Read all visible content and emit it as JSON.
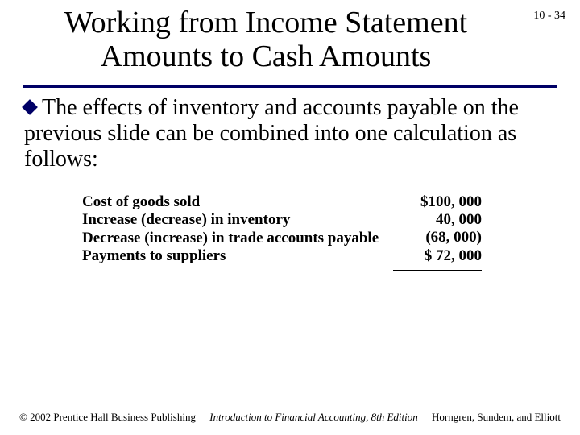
{
  "page_number": "10 - 34",
  "title_line1": "Working from Income Statement",
  "title_line2": "Amounts to Cash Amounts",
  "body_text": "The effects of inventory and accounts payable on the previous slide can be combined into one calculation as follows:",
  "rows": [
    {
      "label": "Cost of goods sold",
      "amount": "$100, 000",
      "underline": false,
      "paren": false
    },
    {
      "label": "Increase (decrease) in inventory",
      "amount": "40, 000",
      "underline": false,
      "paren": false
    },
    {
      "label": "Decrease (increase) in trade accounts payable",
      "amount": "(68, 000)",
      "underline": true,
      "paren": true
    },
    {
      "label": "Payments to suppliers",
      "amount": "$  72, 000",
      "underline": false,
      "paren": false,
      "final": true
    }
  ],
  "footer_left": "© 2002 Prentice Hall Business Publishing",
  "footer_center": "Introduction to Financial Accounting, 8th Edition",
  "footer_right": "Horngren, Sundem, and Elliott",
  "colors": {
    "accent": "#000066",
    "text": "#000000",
    "background": "#ffffff"
  }
}
